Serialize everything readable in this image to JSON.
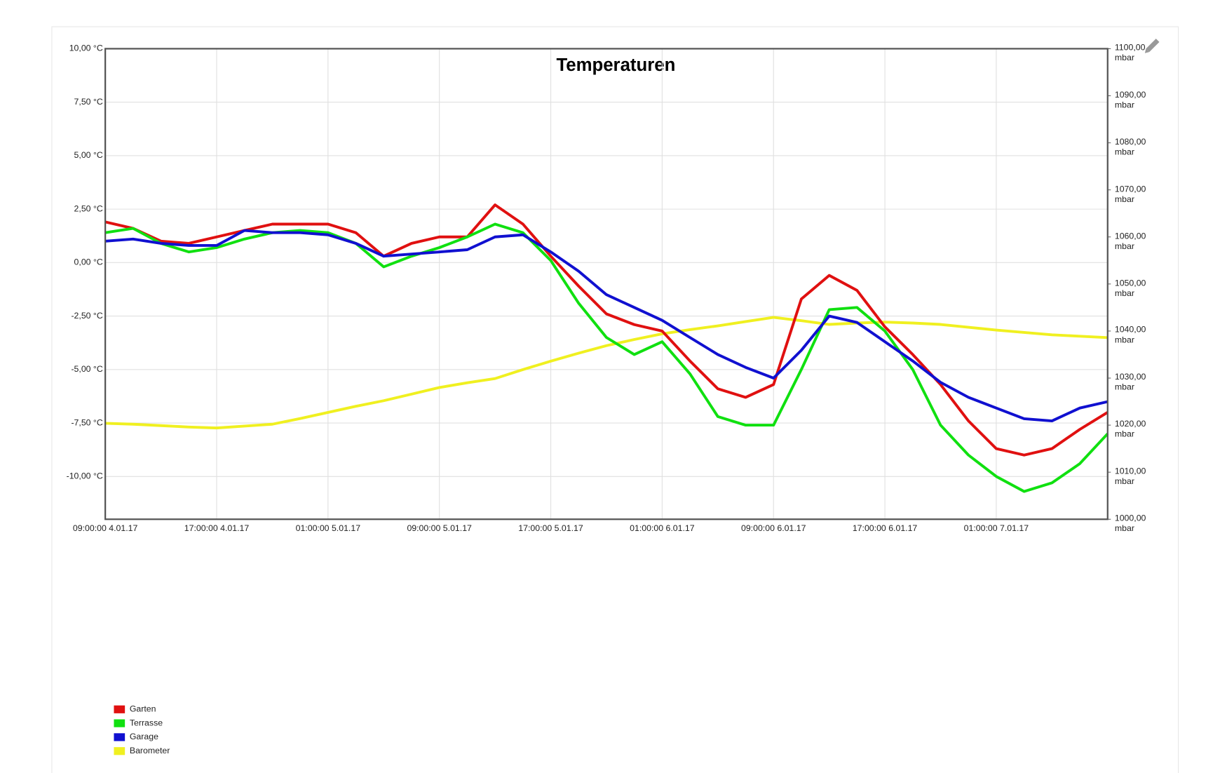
{
  "chart_data": {
    "type": "line",
    "title": "Temperaturen",
    "x": [
      "2017-01-04T09:00",
      "2017-01-04T11:00",
      "2017-01-04T13:00",
      "2017-01-04T15:00",
      "2017-01-04T17:00",
      "2017-01-04T19:00",
      "2017-01-04T21:00",
      "2017-01-04T23:00",
      "2017-01-05T01:00",
      "2017-01-05T03:00",
      "2017-01-05T05:00",
      "2017-01-05T07:00",
      "2017-01-05T09:00",
      "2017-01-05T11:00",
      "2017-01-05T13:00",
      "2017-01-05T15:00",
      "2017-01-05T17:00",
      "2017-01-05T19:00",
      "2017-01-05T21:00",
      "2017-01-05T23:00",
      "2017-01-06T01:00",
      "2017-01-06T03:00",
      "2017-01-06T05:00",
      "2017-01-06T07:00",
      "2017-01-06T09:00",
      "2017-01-06T11:00",
      "2017-01-06T13:00",
      "2017-01-06T15:00",
      "2017-01-06T17:00",
      "2017-01-06T19:00",
      "2017-01-06T21:00",
      "2017-01-06T23:00",
      "2017-01-07T01:00",
      "2017-01-07T03:00",
      "2017-01-07T05:00",
      "2017-01-07T07:00",
      "2017-01-07T09:00"
    ],
    "xlim": [
      "2017-01-04T09:00",
      "2017-01-07T09:00"
    ],
    "xticks": [
      {
        "value": "2017-01-04T09:00",
        "label": "09:00:00 4.01.17"
      },
      {
        "value": "2017-01-04T17:00",
        "label": "17:00:00 4.01.17"
      },
      {
        "value": "2017-01-05T01:00",
        "label": "01:00:00 5.01.17"
      },
      {
        "value": "2017-01-05T09:00",
        "label": "09:00:00 5.01.17"
      },
      {
        "value": "2017-01-05T17:00",
        "label": "17:00:00 5.01.17"
      },
      {
        "value": "2017-01-06T01:00",
        "label": "01:00:00 6.01.17"
      },
      {
        "value": "2017-01-06T09:00",
        "label": "09:00:00 6.01.17"
      },
      {
        "value": "2017-01-06T17:00",
        "label": "17:00:00 6.01.17"
      },
      {
        "value": "2017-01-07T01:00",
        "label": "01:00:00 7.01.17"
      }
    ],
    "ylim": [
      -12,
      10
    ],
    "yticks": [
      {
        "value": 10,
        "label": "10,00 °C"
      },
      {
        "value": 7.5,
        "label": "7,50 °C"
      },
      {
        "value": 5,
        "label": "5,00 °C"
      },
      {
        "value": 2.5,
        "label": "2,50 °C"
      },
      {
        "value": 0,
        "label": "0,00 °C"
      },
      {
        "value": -2.5,
        "label": "-2,50 °C"
      },
      {
        "value": -5,
        "label": "-5,00 °C"
      },
      {
        "value": -7.5,
        "label": "-7,50 °C"
      },
      {
        "value": -10,
        "label": "-10,00 °C"
      }
    ],
    "y2lim": [
      1000,
      1100
    ],
    "y2ticks": [
      {
        "value": 1100,
        "label": "1100,00 mbar"
      },
      {
        "value": 1090,
        "label": "1090,00 mbar"
      },
      {
        "value": 1080,
        "label": "1080,00 mbar"
      },
      {
        "value": 1070,
        "label": "1070,00 mbar"
      },
      {
        "value": 1060,
        "label": "1060,00 mbar"
      },
      {
        "value": 1050,
        "label": "1050,00 mbar"
      },
      {
        "value": 1040,
        "label": "1040,00 mbar"
      },
      {
        "value": 1030,
        "label": "1030,00 mbar"
      },
      {
        "value": 1020,
        "label": "1020,00 mbar"
      },
      {
        "value": 1010,
        "label": "1010,00 mbar"
      },
      {
        "value": 1000,
        "label": "1000,00 mbar"
      }
    ],
    "grid": true,
    "legend": "bottom-left",
    "series": [
      {
        "name": "Garten",
        "color": "#e01010",
        "values": [
          1.9,
          1.6,
          1.0,
          0.9,
          1.2,
          1.5,
          1.8,
          1.8,
          1.8,
          1.4,
          0.3,
          0.9,
          1.2,
          1.2,
          2.7,
          1.8,
          0.3,
          -1.1,
          -2.4,
          -2.9,
          -3.2,
          -4.6,
          -5.9,
          -6.3,
          -5.7,
          -1.7,
          -0.6,
          -1.3,
          -3.0,
          -4.3,
          -5.7,
          -7.4,
          -8.7,
          -9.0,
          -8.7,
          -7.8,
          -7.0
        ]
      },
      {
        "name": "Terrasse",
        "color": "#10e010",
        "values": [
          1.4,
          1.6,
          0.9,
          0.5,
          0.7,
          1.1,
          1.4,
          1.5,
          1.4,
          0.9,
          -0.2,
          0.3,
          0.7,
          1.2,
          1.8,
          1.4,
          0.1,
          -1.9,
          -3.5,
          -4.3,
          -3.7,
          -5.2,
          -7.2,
          -7.6,
          -7.6,
          -5.0,
          -2.2,
          -2.1,
          -3.2,
          -5.0,
          -7.6,
          -9.0,
          -10.0,
          -10.7,
          -10.3,
          -9.4,
          -8.0
        ]
      },
      {
        "name": "Garage",
        "color": "#1010d0",
        "values": [
          1.0,
          1.1,
          0.9,
          0.8,
          0.8,
          1.5,
          1.4,
          1.4,
          1.3,
          0.9,
          0.3,
          0.4,
          0.5,
          0.6,
          1.2,
          1.3,
          0.5,
          -0.4,
          -1.5,
          -2.1,
          -2.7,
          -3.5,
          -4.3,
          -4.9,
          -5.4,
          -4.1,
          -2.5,
          -2.8,
          -3.7,
          -4.6,
          -5.6,
          -6.3,
          -6.8,
          -7.3,
          -7.4,
          -6.8,
          -6.5
        ]
      },
      {
        "name": "Barometer",
        "color": "#f0f020",
        "axis": "y2",
        "values": [
          1020.4,
          1020.2,
          1019.9,
          1019.6,
          1019.4,
          1019.8,
          1020.2,
          1021.4,
          1022.7,
          1024.0,
          1025.2,
          1026.6,
          1028.0,
          1029.0,
          1029.9,
          1031.8,
          1033.6,
          1035.3,
          1036.9,
          1038.2,
          1039.4,
          1040.3,
          1041.1,
          1042.0,
          1042.9,
          1042.2,
          1041.4,
          1041.7,
          1041.9,
          1041.7,
          1041.4,
          1040.8,
          1040.2,
          1039.7,
          1039.2,
          1038.9,
          1038.6
        ]
      }
    ]
  }
}
